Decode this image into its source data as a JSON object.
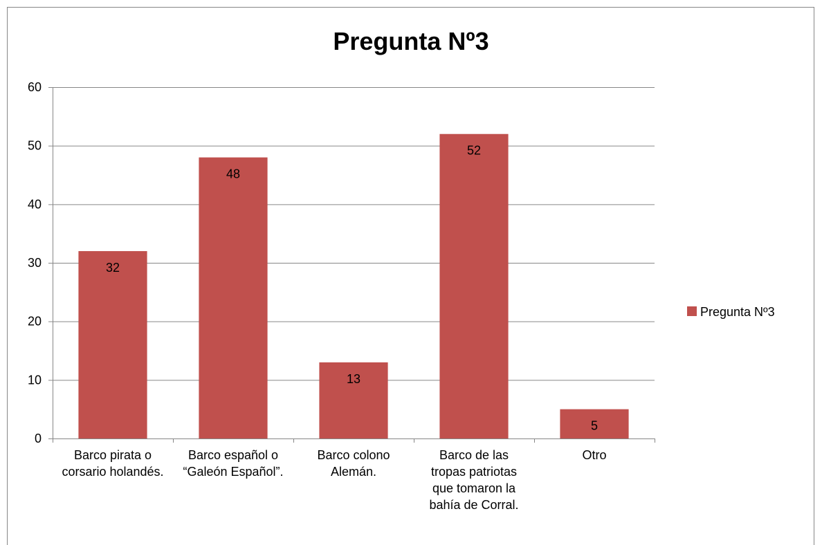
{
  "chart_data": {
    "type": "bar",
    "title": "Pregunta Nº3",
    "categories": [
      "Barco pirata o corsario holandés.",
      "Barco español o “Galeón Español”.",
      "Barco colono Alemán.",
      "Barco de las tropas patriotas que tomaron la bahía de Corral.",
      "Otro"
    ],
    "series": [
      {
        "name": "Pregunta Nº3",
        "color": "#c0504d",
        "values": [
          32,
          48,
          13,
          52,
          5
        ]
      }
    ],
    "ylim": [
      0,
      60
    ],
    "yticks": [
      0,
      10,
      20,
      30,
      40,
      50,
      60
    ],
    "grid": true,
    "legend": "right"
  }
}
